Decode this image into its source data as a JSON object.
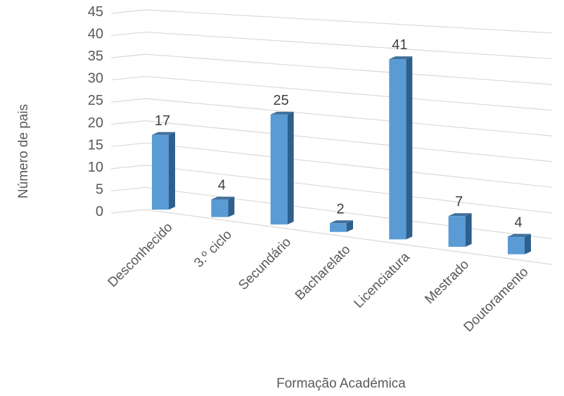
{
  "chart_data": {
    "type": "bar",
    "style": "3d-column",
    "title": "",
    "categories": [
      "Desconhecido",
      "3.º ciclo",
      "Secundário",
      "Bacharelato",
      "Licenciatura",
      "Mestrado",
      "Doutoramento"
    ],
    "values": [
      17,
      4,
      25,
      2,
      41,
      7,
      4
    ],
    "data_labels": [
      "17",
      "4",
      "25",
      "2",
      "41",
      "7",
      "4"
    ],
    "xlabel": "Formação Académica",
    "ylabel": "Número de pais",
    "ylim": [
      0,
      45
    ],
    "yticks": [
      0,
      5,
      10,
      15,
      20,
      25,
      30,
      35,
      40,
      45
    ],
    "grid": true,
    "legend": "none",
    "colors": {
      "bar_front": "#5b9bd5",
      "bar_side": "#2e5f8d",
      "bar_top": "#41719c",
      "grid": "#d9d9d9",
      "text": "#595959"
    }
  }
}
